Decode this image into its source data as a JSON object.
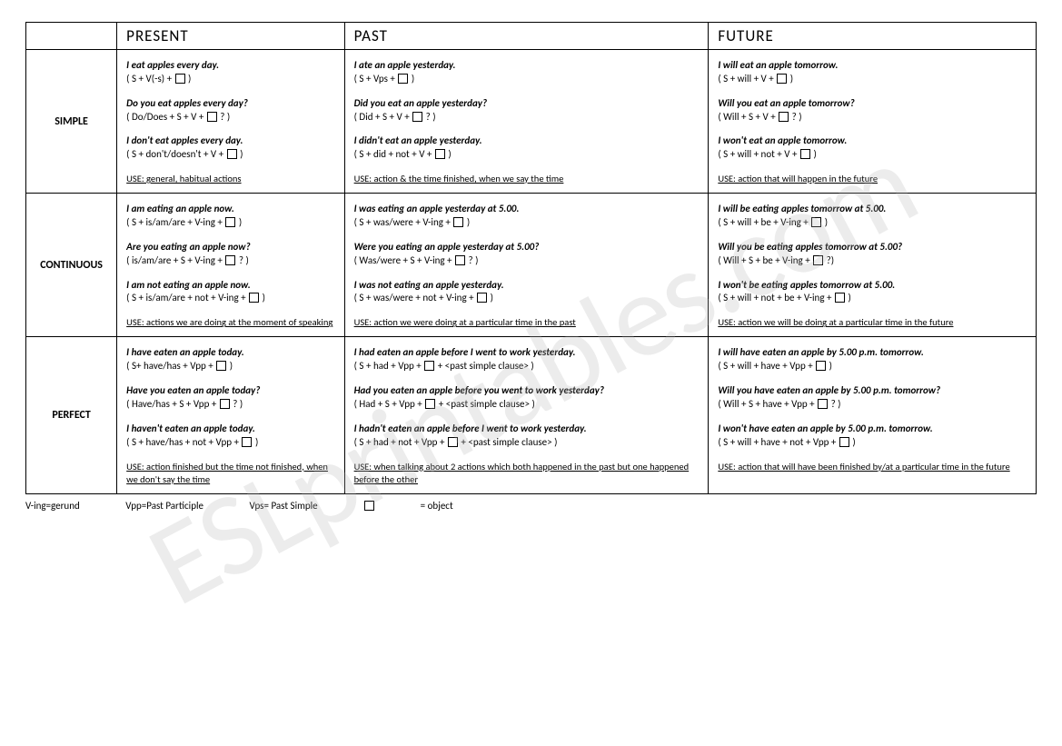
{
  "columns": {
    "present": "PRESENT",
    "past": "PAST",
    "future": "FUTURE"
  },
  "rows": {
    "simple": "SIMPLE",
    "continuous": "CONTINUOUS",
    "perfect": "PERFECT"
  },
  "cells": {
    "simple": {
      "present": {
        "aff_ex": "I eat apples every day.",
        "aff_fm": "( S + V(-s) + □ )",
        "q_ex": "Do you eat apples every day?",
        "q_fm": "( Do/Does + S + V + □ ? )",
        "neg_ex": "I don't eat apples every day.",
        "neg_fm": "( S + don't/doesn't + V + □ )",
        "use": "USE: general, habitual actions"
      },
      "past": {
        "aff_ex": "I ate an apple yesterday.",
        "aff_fm": "( S + Vps + □ )",
        "q_ex": "Did you eat an apple yesterday?",
        "q_fm": "( Did + S + V + □ ? )",
        "neg_ex": "I didn't eat an apple yesterday.",
        "neg_fm": "( S + did + not + V + □ )",
        "use": "USE: action & the time finished, when we say the time"
      },
      "future": {
        "aff_ex": "I will eat an apple tomorrow.",
        "aff_fm": "( S + will + V + □ )",
        "q_ex": "Will you eat an apple tomorrow?",
        "q_fm": "( Will + S + V + □ ? )",
        "neg_ex": "I won't eat an apple tomorrow.",
        "neg_fm": "( S + will + not + V + □ )",
        "use": "USE: action that will happen in the future"
      }
    },
    "continuous": {
      "present": {
        "aff_ex": "I am eating an apple now.",
        "aff_fm": "( S + is/am/are + V-ing + □ )",
        "q_ex": "Are you eating an apple now?",
        "q_fm": "( is/am/are + S + V-ing + □ ? )",
        "neg_ex": "I am not eating an apple now.",
        "neg_fm": "( S + is/am/are + not + V-ing + □ )",
        "use": "USE: actions we are doing at the moment of speaking"
      },
      "past": {
        "aff_ex": "I was eating an apple yesterday at 5.00.",
        "aff_fm": "( S + was/were + V-ing + □ )",
        "q_ex": "Were you eating an apple yesterday at 5.00?",
        "q_fm": "( Was/were + S + V-ing + □ ? )",
        "neg_ex": "I was not eating an apple yesterday.",
        "neg_fm": "( S + was/were + not + V-ing + □ )",
        "use": "USE: action we were doing at a particular time in the past"
      },
      "future": {
        "aff_ex": "I will be eating apples tomorrow at 5.00.",
        "aff_fm": "( S + will + be + V-ing + □ )",
        "q_ex": "Will you be eating apples tomorrow at 5.00?",
        "q_fm": "( Will + S + be + V-ing + □ ?)",
        "neg_ex": "I won't be eating apples tomorrow at 5.00.",
        "neg_fm": "( S + will + not + be + V-ing + □ )",
        "use": "USE: action we will be doing at a particular time in the future"
      }
    },
    "perfect": {
      "present": {
        "aff_ex": "I have eaten an apple today.",
        "aff_fm": "( S+ have/has + Vpp + □ )",
        "q_ex": "Have you eaten an apple today?",
        "q_fm": "( Have/has + S + Vpp + □ ? )",
        "neg_ex": "I haven't eaten an apple today.",
        "neg_fm": "( S + have/has + not + Vpp + □ )",
        "use": "USE: action finished but the time not finished, when we don't say the time"
      },
      "past": {
        "aff_ex": "I had eaten an apple before I went to work yesterday.",
        "aff_fm": "( S + had + Vpp + □ + <past simple clause> )",
        "q_ex": "Had you eaten an apple before you went to work yesterday?",
        "q_fm": "( Had + S + Vpp + □ + <past simple clause> )",
        "neg_ex": "I hadn't eaten an apple before I went to work yesterday.",
        "neg_fm": "( S + had + not + Vpp + □ + <past simple clause> )",
        "use": "USE: when talking about 2 actions which both happened in the past but one happened before the other"
      },
      "future": {
        "aff_ex": "I will have eaten an apple by 5.00 p.m. tomorrow.",
        "aff_fm": "( S + will + have + Vpp + □ )",
        "q_ex": "Will you have eaten an apple by 5.00 p.m. tomorrow?",
        "q_fm": "( Will + S + have + Vpp + □ ? )",
        "neg_ex": "I won't have eaten an apple by 5.00 p.m. tomorrow.",
        "neg_fm": "( S + will + have + not + Vpp + □ )",
        "use": "USE: action that will have been finished by/at a particular time in the future"
      }
    }
  },
  "footer": {
    "l1": "V-ing=gerund",
    "l2": "Vpp=Past Participle",
    "l3": "Vps= Past Simple",
    "l4": "□ = object"
  },
  "watermark": "ESLprintables.com"
}
